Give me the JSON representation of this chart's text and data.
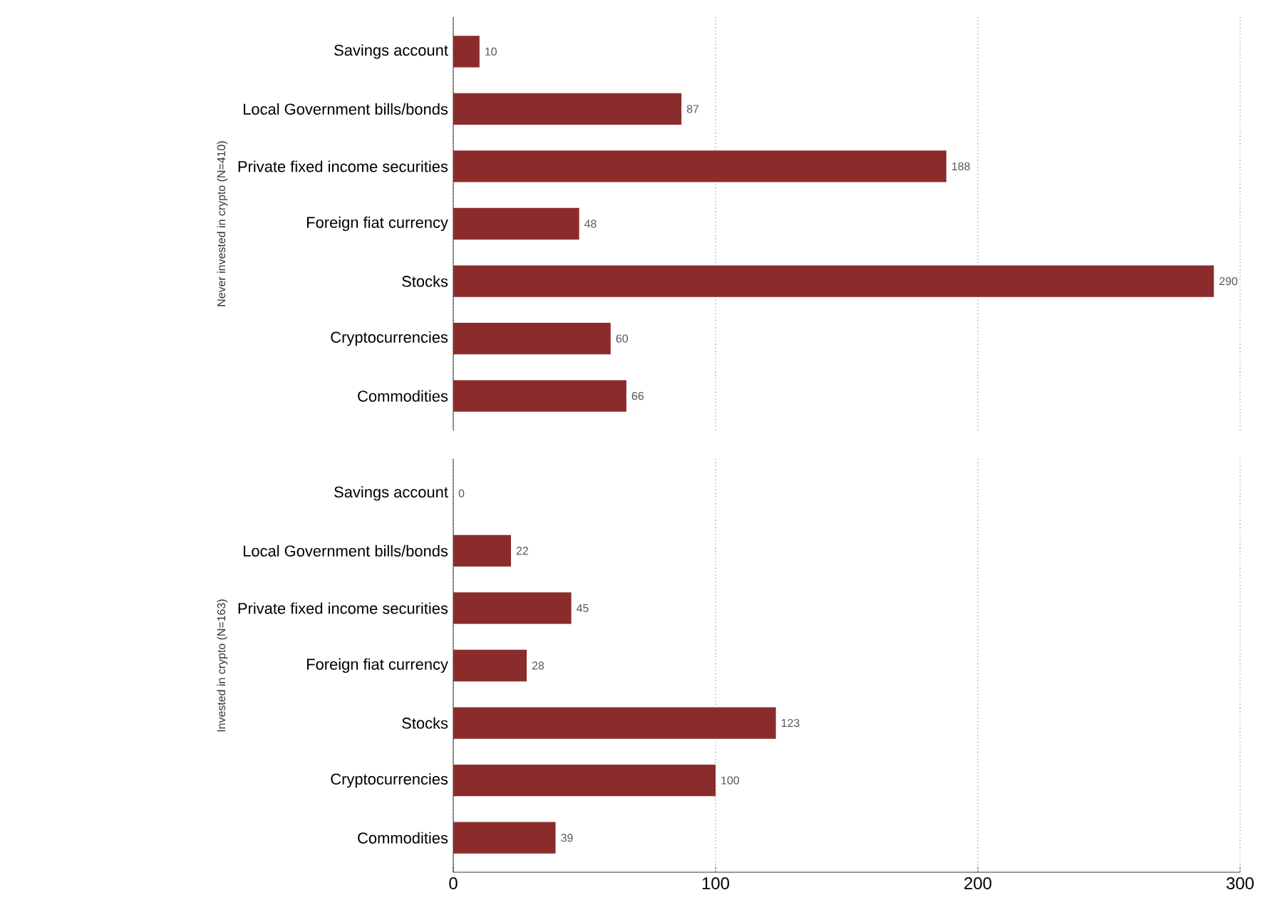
{
  "chart_data": [
    {
      "type": "bar",
      "orientation": "horizontal",
      "ylabel": "Never invested in crypto (N=410)",
      "categories": [
        "Savings account",
        "Local Government bills/bonds",
        "Private fixed income securities",
        "Foreign fiat currency",
        "Stocks",
        "Cryptocurrencies",
        "Commodities"
      ],
      "values": [
        10,
        87,
        188,
        48,
        290,
        60,
        66
      ],
      "color": "#8b2c2c",
      "data_labels": true,
      "xlim": [
        0,
        300
      ],
      "xticks": [
        0,
        100,
        200,
        300
      ],
      "grid": "x",
      "tick_labels": "y"
    },
    {
      "type": "bar",
      "orientation": "horizontal",
      "ylabel": "Invested in crypto (N=163)",
      "categories": [
        "Savings account",
        "Local Government bills/bonds",
        "Private fixed income securities",
        "Foreign fiat currency",
        "Stocks",
        "Cryptocurrencies",
        "Commodities"
      ],
      "values": [
        0,
        22,
        45,
        28,
        123,
        100,
        39
      ],
      "color": "#8b2c2c",
      "data_labels": true,
      "xlim": [
        0,
        300
      ],
      "xticks": [
        0,
        100,
        200,
        300
      ],
      "grid": "x"
    }
  ]
}
